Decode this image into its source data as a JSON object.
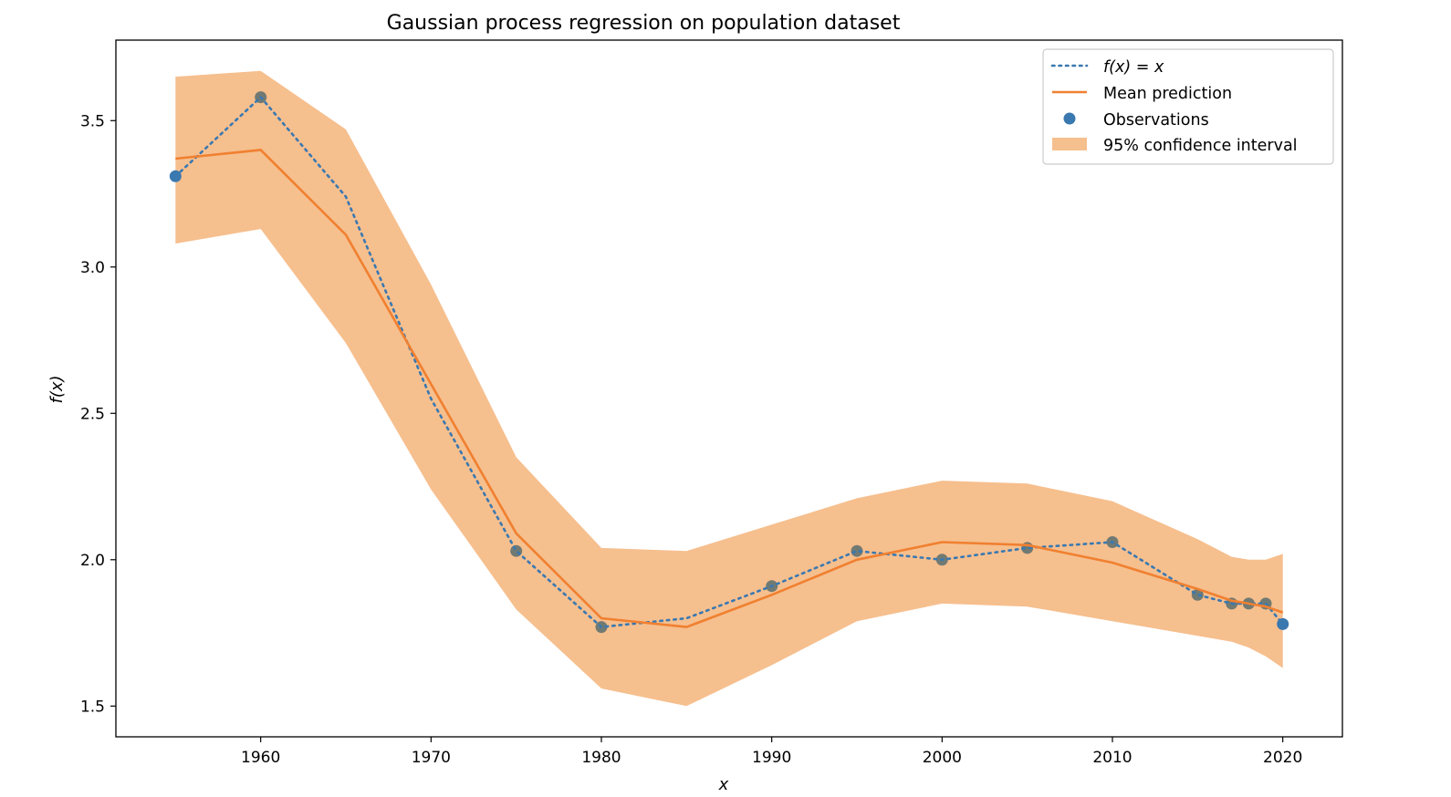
{
  "chart_data": {
    "type": "line",
    "title": "Gaussian process regression on population dataset",
    "xlabel": "x",
    "ylabel": "f(x)",
    "xlim": [
      1951.5,
      2023.5
    ],
    "ylim": [
      1.395,
      3.775
    ],
    "x_ticks": [
      1960,
      1970,
      1980,
      1990,
      2000,
      2010,
      2020
    ],
    "y_ticks": [
      1.5,
      2.0,
      2.5,
      3.0,
      3.5
    ],
    "x_tick_labels": [
      "1960",
      "1970",
      "1980",
      "1990",
      "2000",
      "2010",
      "2020"
    ],
    "y_tick_labels": [
      "1.5",
      "2.0",
      "2.5",
      "3.0",
      "3.5"
    ],
    "grid": false,
    "legend_position": "top-right",
    "legend": {
      "fx": "f(x) = x",
      "mean": "Mean prediction",
      "obs": "Observations",
      "ci": "95% confidence interval"
    },
    "colors": {
      "fx_line": "#3a78b0",
      "mean_line": "#f08030",
      "ci_fill": "#f6bf8e",
      "observation": "#3a78b0",
      "observation_overlap": "#717a72"
    },
    "series": [
      {
        "name": "f(x) = x",
        "x": [
          1955,
          1960,
          1965,
          1970,
          1975,
          1980,
          1985,
          1990,
          1995,
          2000,
          2005,
          2010,
          2015,
          2017,
          2018,
          2019,
          2020
        ],
        "y": [
          3.31,
          3.58,
          3.24,
          2.55,
          2.03,
          1.77,
          1.8,
          1.91,
          2.03,
          2.0,
          2.04,
          2.06,
          1.88,
          1.85,
          1.85,
          1.85,
          1.78
        ]
      },
      {
        "name": "Mean prediction",
        "x": [
          1955,
          1960,
          1965,
          1970,
          1975,
          1980,
          1985,
          1990,
          1995,
          2000,
          2005,
          2010,
          2015,
          2017,
          2018,
          2019,
          2020
        ],
        "y": [
          3.37,
          3.4,
          3.11,
          2.6,
          2.09,
          1.8,
          1.77,
          1.88,
          2.0,
          2.06,
          2.05,
          1.99,
          1.9,
          1.86,
          1.85,
          1.84,
          1.82
        ]
      },
      {
        "name": "Observations",
        "x": [
          1955,
          1960,
          1975,
          1980,
          1990,
          1995,
          2000,
          2005,
          2010,
          2015,
          2017,
          2018,
          2019,
          2020
        ],
        "y": [
          3.31,
          3.58,
          2.03,
          1.77,
          1.91,
          2.03,
          2.0,
          2.04,
          2.06,
          1.88,
          1.85,
          1.85,
          1.85,
          1.78
        ]
      }
    ],
    "confidence_interval": {
      "name": "95% confidence interval",
      "x": [
        1955,
        1960,
        1965,
        1970,
        1975,
        1980,
        1985,
        1990,
        1995,
        2000,
        2005,
        2010,
        2015,
        2016,
        2017,
        2018,
        2019,
        2020
      ],
      "lower": [
        3.08,
        3.13,
        2.74,
        2.24,
        1.83,
        1.56,
        1.5,
        1.64,
        1.79,
        1.85,
        1.84,
        1.79,
        1.74,
        1.73,
        1.72,
        1.7,
        1.67,
        1.63
      ],
      "upper": [
        3.65,
        3.67,
        3.47,
        2.94,
        2.35,
        2.04,
        2.03,
        2.12,
        2.21,
        2.27,
        2.26,
        2.2,
        2.07,
        2.04,
        2.01,
        2.0,
        2.0,
        2.02
      ]
    }
  }
}
